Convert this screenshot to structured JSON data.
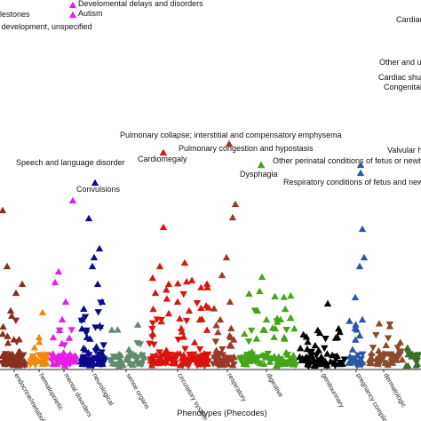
{
  "chart_data": {
    "type": "scatter",
    "title": "",
    "xlabel": "Phenotypes (Phecodes)",
    "ylabel": "",
    "grid": false,
    "legend": "none",
    "categories": [
      {
        "name": "endocrine/metabolic",
        "color": "#8b2e1e"
      },
      {
        "name": "hematopoietic",
        "color": "#f08a0c"
      },
      {
        "name": "mental disorders",
        "color": "#e51ee5"
      },
      {
        "name": "neurological",
        "color": "#0a0a8c"
      },
      {
        "name": "sense organs",
        "color": "#5f8c6c"
      },
      {
        "name": "circulatory system",
        "color": "#d9150d"
      },
      {
        "name": "respiratory",
        "color": "#9c3a2a"
      },
      {
        "name": "digestive",
        "color": "#45a51a"
      },
      {
        "name": "genitourinary",
        "color": "#000000"
      },
      {
        "name": "pregnancy complications",
        "color": "#2a57a8"
      },
      {
        "name": "dermatologic",
        "color": "#8a4b2c"
      },
      {
        "name": "",
        "color": "#3c6e2a"
      }
    ],
    "annotations": [
      {
        "label": "ilestones",
        "category": 0,
        "shown": false
      },
      {
        "label": "al development, unspecified",
        "category": 0,
        "shown": false
      },
      {
        "label": "Develomental delays and disorders",
        "category": 2,
        "shown": true
      },
      {
        "label": "Autism",
        "category": 2,
        "shown": true
      },
      {
        "label": "Speech and language disorder",
        "category": 0,
        "shown": false
      },
      {
        "label": "Convulsions",
        "category": 3,
        "shown": true
      },
      {
        "label": "Pulmonary collapse; interstitial and compensatory emphysema",
        "category": 6,
        "shown": true
      },
      {
        "label": "Cardiomegaly",
        "category": 5,
        "shown": true
      },
      {
        "label": "Pulmonary congestion and hypostasis",
        "category": 6,
        "shown": true
      },
      {
        "label": "Other perinatal conditions of fetus or newborn",
        "category": 9,
        "shown": true
      },
      {
        "label": "Dysphagia",
        "category": 7,
        "shown": true
      },
      {
        "label": "Respiratory conditions of fetus and newborn",
        "category": 9,
        "shown": true
      },
      {
        "label": "Valvular he",
        "category": 5,
        "shown": false
      },
      {
        "label": "Cardiac",
        "category": 5,
        "shown": false
      },
      {
        "label": "Other and une",
        "category": 5,
        "shown": false
      },
      {
        "label": "Cardiac shun",
        "category": 5,
        "shown": false
      },
      {
        "label": "Congenital",
        "category": 5,
        "shown": false
      }
    ]
  }
}
